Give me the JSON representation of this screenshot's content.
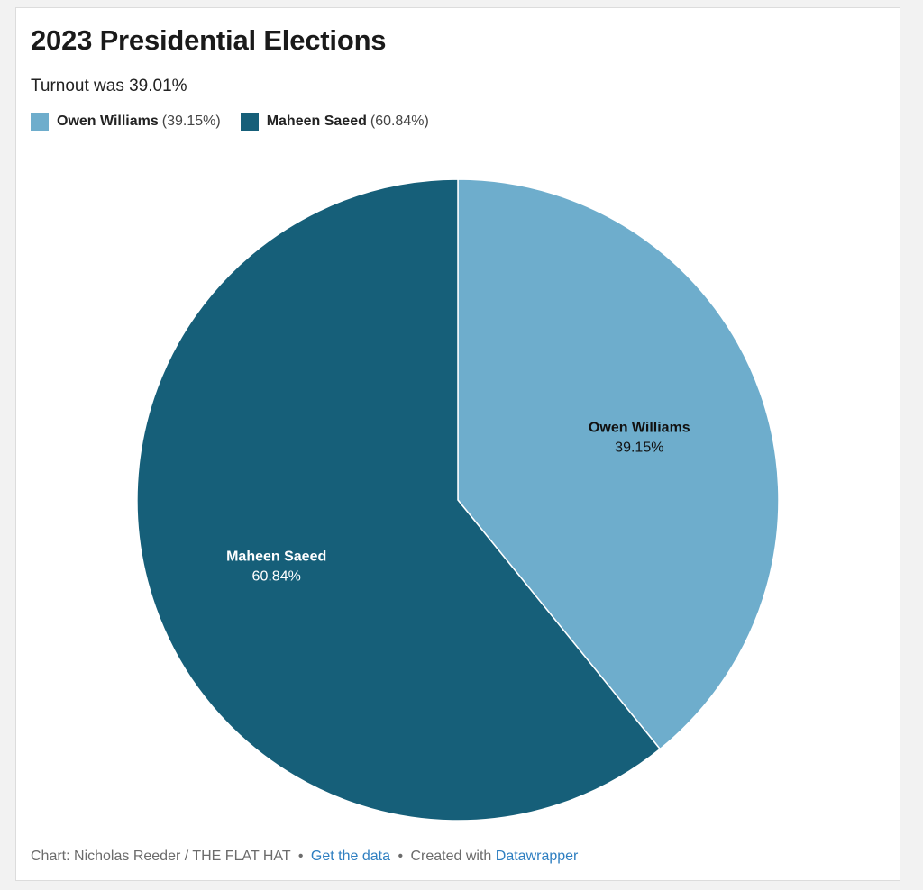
{
  "title": "2023 Presidential Elections",
  "subtitle": "Turnout was 39.01%",
  "colors": {
    "owen": "#6eadcc",
    "maheen": "#165f79"
  },
  "chart_data": {
    "type": "pie",
    "title": "2023 Presidential Elections",
    "subtitle": "Turnout was 39.01%",
    "start": "12 o'clock, clockwise",
    "slices": [
      {
        "name": "Owen Williams",
        "value": 39.15,
        "label": "39.15%",
        "legend_pct": "(39.15%)",
        "color": "#6eadcc",
        "label_color": "#111111"
      },
      {
        "name": "Maheen Saeed",
        "value": 60.84,
        "label": "60.84%",
        "legend_pct": "(60.84%)",
        "color": "#165f79",
        "label_color": "#ffffff"
      }
    ]
  },
  "footer": {
    "credit": "Chart: Nicholas Reeder / THE FLAT HAT",
    "separator": "•",
    "data_link": "Get the data",
    "created_text": "Created with",
    "tool_link": "Datawrapper"
  }
}
